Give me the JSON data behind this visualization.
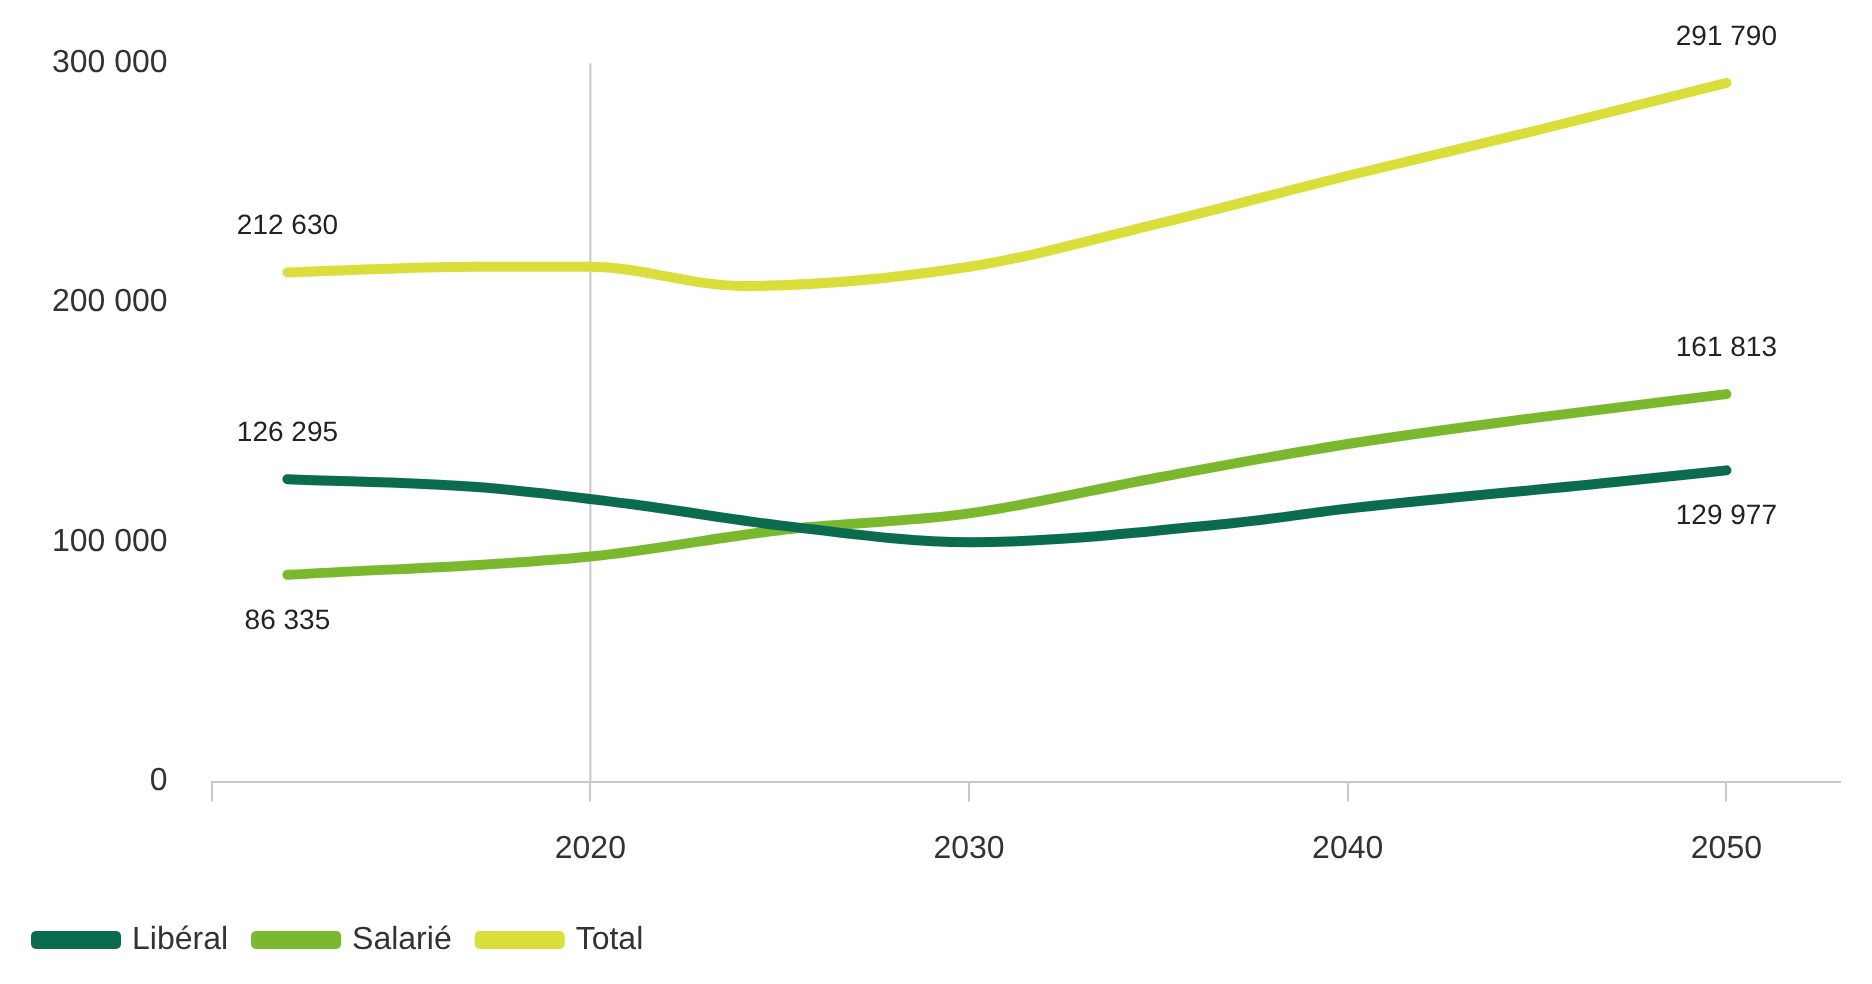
{
  "chart_data": {
    "type": "line",
    "xlim": [
      2010,
      2053
    ],
    "xticks": [
      {
        "value": 2010,
        "label": null
      },
      2020,
      2030,
      2040,
      2050
    ],
    "ylim": [
      0,
      300000
    ],
    "yticks": [
      {
        "value": 0,
        "label": "0"
      },
      {
        "value": 100000,
        "label": "100 000"
      },
      {
        "value": 200000,
        "label": "200 000"
      },
      {
        "value": 300000,
        "label": "300 000"
      }
    ],
    "grid": false,
    "legend": "bottom",
    "marker": "none",
    "line_style": "solid",
    "ref_lines": [
      {
        "axis": "x",
        "value": 2020,
        "color": "#c8c8c8"
      }
    ],
    "series": [
      {
        "name": "Libéral",
        "color": "#0b6b4f",
        "x": [
          2012,
          2017,
          2021,
          2025,
          2030,
          2037,
          2040,
          2047,
          2050
        ],
        "values": [
          126295,
          123000,
          116000,
          107000,
          100000,
          108000,
          114000,
          125000,
          129977
        ],
        "value_labels": [
          "126 295",
          null,
          null,
          null,
          null,
          null,
          null,
          null,
          "129 977"
        ]
      },
      {
        "name": "Salarié",
        "color": "#7ab82e",
        "x": [
          2012,
          2020,
          2025,
          2030,
          2035,
          2040,
          2045,
          2050
        ],
        "values": [
          86335,
          94000,
          105000,
          112000,
          127000,
          141000,
          152000,
          161813
        ],
        "value_labels": [
          "86 335",
          null,
          null,
          null,
          null,
          null,
          null,
          "161 813"
        ]
      },
      {
        "name": "Total",
        "color": "#d9de3a",
        "x": [
          2012,
          2017,
          2020,
          2024,
          2030,
          2035,
          2040,
          2045,
          2050
        ],
        "values": [
          212630,
          215000,
          215000,
          207000,
          215000,
          233000,
          253000,
          272000,
          291790
        ],
        "value_labels": [
          "212 630",
          null,
          null,
          null,
          null,
          null,
          null,
          null,
          "291 790"
        ]
      }
    ]
  }
}
